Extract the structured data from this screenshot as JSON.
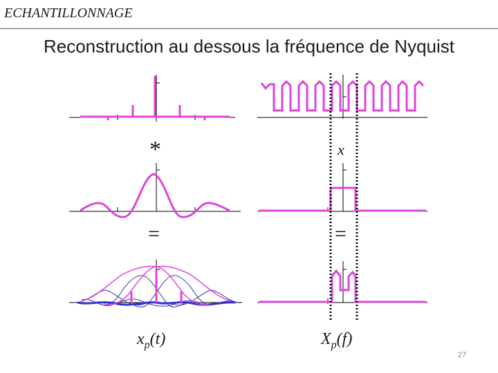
{
  "header": {
    "title": "ECHANTILLONNAGE"
  },
  "slide": {
    "title": "Reconstruction au dessous la fréquence de Nyquist"
  },
  "symbols": {
    "convolution": "*",
    "multiplication": "x",
    "equals_left": "=",
    "equals_right": "="
  },
  "captions": {
    "left": {
      "main": "x",
      "sub": "p",
      "rest": "(t)"
    },
    "right": {
      "main": "X",
      "sub": "p",
      "rest": "(f)"
    }
  },
  "footer": {
    "page_number": "27"
  },
  "colors": {
    "signal": "#dd44dd",
    "alias": "#3333aa",
    "axis": "#000000"
  }
}
